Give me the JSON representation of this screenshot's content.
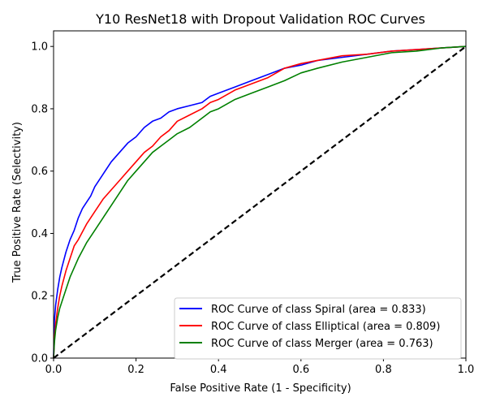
{
  "chart_data": {
    "type": "line",
    "title": "Y10 ResNet18 with Dropout Validation ROC Curves",
    "xlabel": "False Positive Rate (1 - Specificity)",
    "ylabel": "True Positive Rate (Selectivity)",
    "xlim": [
      0.0,
      1.0
    ],
    "ylim": [
      0.0,
      1.05
    ],
    "xticks": [
      "0.0",
      "0.2",
      "0.4",
      "0.6",
      "0.8",
      "1.0"
    ],
    "yticks": [
      "0.0",
      "0.2",
      "0.4",
      "0.6",
      "0.8",
      "1.0"
    ],
    "grid": false,
    "legend_position": "lower-right",
    "series": [
      {
        "name": "ROC Curve of class Spiral (area = 0.833)",
        "color": "#0000ff",
        "x": [
          0,
          0.002,
          0.005,
          0.01,
          0.015,
          0.02,
          0.03,
          0.04,
          0.05,
          0.06,
          0.07,
          0.08,
          0.09,
          0.1,
          0.12,
          0.14,
          0.16,
          0.18,
          0.2,
          0.22,
          0.24,
          0.26,
          0.28,
          0.3,
          0.33,
          0.36,
          0.38,
          0.4,
          0.44,
          0.48,
          0.52,
          0.56,
          0.6,
          0.64,
          0.7,
          0.76,
          0.82,
          0.88,
          0.94,
          1.0
        ],
        "y": [
          0,
          0.12,
          0.17,
          0.22,
          0.26,
          0.29,
          0.34,
          0.38,
          0.41,
          0.45,
          0.48,
          0.5,
          0.52,
          0.55,
          0.59,
          0.63,
          0.66,
          0.69,
          0.71,
          0.74,
          0.76,
          0.77,
          0.79,
          0.8,
          0.81,
          0.82,
          0.84,
          0.85,
          0.87,
          0.89,
          0.91,
          0.93,
          0.94,
          0.955,
          0.965,
          0.975,
          0.985,
          0.99,
          0.995,
          1.0
        ]
      },
      {
        "name": "ROC Curve of class Elliptical (area = 0.809)",
        "color": "#ff0000",
        "x": [
          0,
          0.002,
          0.005,
          0.01,
          0.015,
          0.02,
          0.03,
          0.04,
          0.05,
          0.06,
          0.08,
          0.1,
          0.12,
          0.14,
          0.16,
          0.18,
          0.2,
          0.22,
          0.24,
          0.26,
          0.28,
          0.3,
          0.33,
          0.36,
          0.38,
          0.4,
          0.44,
          0.48,
          0.52,
          0.56,
          0.6,
          0.64,
          0.7,
          0.76,
          0.82,
          0.88,
          0.94,
          1.0
        ],
        "y": [
          0,
          0.06,
          0.11,
          0.16,
          0.2,
          0.23,
          0.28,
          0.32,
          0.36,
          0.38,
          0.43,
          0.47,
          0.51,
          0.54,
          0.57,
          0.6,
          0.63,
          0.66,
          0.68,
          0.71,
          0.73,
          0.76,
          0.78,
          0.8,
          0.82,
          0.83,
          0.86,
          0.88,
          0.9,
          0.93,
          0.945,
          0.955,
          0.97,
          0.975,
          0.985,
          0.99,
          0.995,
          1.0
        ]
      },
      {
        "name": "ROC Curve of class Merger (area = 0.763)",
        "color": "#008000",
        "x": [
          0,
          0.002,
          0.005,
          0.01,
          0.015,
          0.02,
          0.03,
          0.04,
          0.05,
          0.06,
          0.08,
          0.1,
          0.12,
          0.14,
          0.16,
          0.18,
          0.2,
          0.22,
          0.24,
          0.26,
          0.28,
          0.3,
          0.33,
          0.36,
          0.38,
          0.4,
          0.44,
          0.48,
          0.52,
          0.56,
          0.6,
          0.64,
          0.7,
          0.76,
          0.82,
          0.88,
          0.94,
          1.0
        ],
        "y": [
          0,
          0.05,
          0.09,
          0.13,
          0.16,
          0.18,
          0.22,
          0.26,
          0.29,
          0.32,
          0.37,
          0.41,
          0.45,
          0.49,
          0.53,
          0.57,
          0.6,
          0.63,
          0.66,
          0.68,
          0.7,
          0.72,
          0.74,
          0.77,
          0.79,
          0.8,
          0.83,
          0.85,
          0.87,
          0.89,
          0.915,
          0.93,
          0.95,
          0.965,
          0.98,
          0.985,
          0.995,
          1.0
        ]
      },
      {
        "name": "",
        "color": "#000000",
        "dashed": true,
        "x": [
          0,
          1
        ],
        "y": [
          0,
          1
        ]
      }
    ]
  }
}
